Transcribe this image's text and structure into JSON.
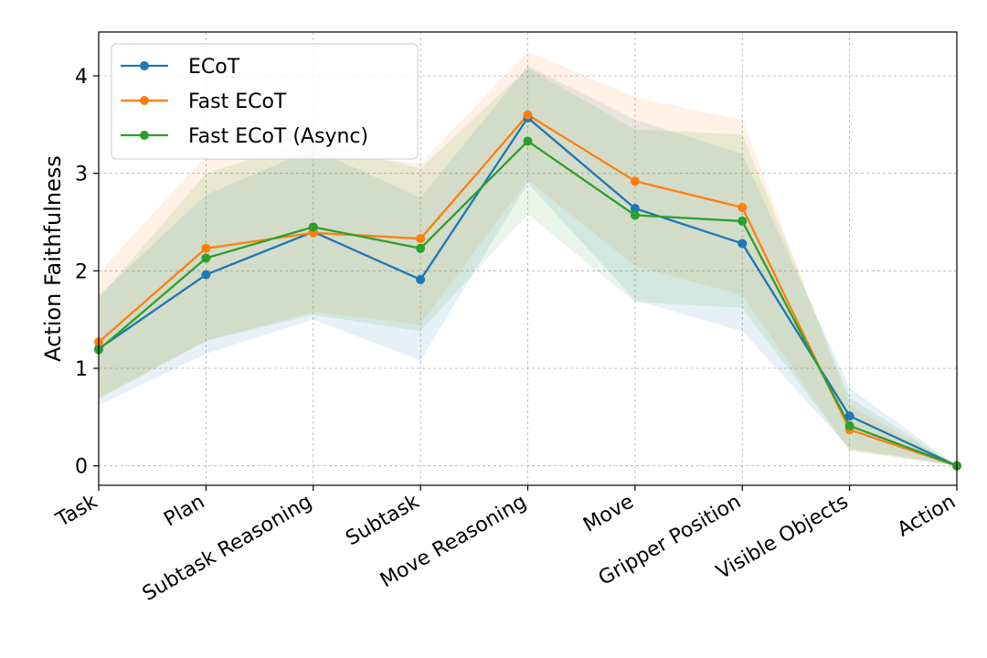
{
  "chart_data": {
    "type": "line",
    "title": "",
    "xlabel": "",
    "ylabel": "Action Faithfulness",
    "categories": [
      "Task",
      "Plan",
      "Subtask Reasoning",
      "Subtask",
      "Move Reasoning",
      "Move",
      "Gripper Position",
      "Visible Objects",
      "Action"
    ],
    "ylim": [
      -0.2,
      4.45
    ],
    "yticks": [
      0,
      1,
      2,
      3,
      4
    ],
    "grid": true,
    "legend_position": "top-left",
    "series": [
      {
        "name": "ECoT",
        "color": "#1f77b4",
        "values": [
          1.2,
          1.96,
          2.4,
          1.91,
          3.57,
          2.64,
          2.28,
          0.51,
          0.0
        ],
        "lower": [
          0.62,
          1.15,
          1.5,
          1.08,
          2.9,
          1.7,
          1.38,
          0.18,
          0.0
        ],
        "upper": [
          1.75,
          2.78,
          3.25,
          2.75,
          4.1,
          3.55,
          3.2,
          0.8,
          0.0
        ]
      },
      {
        "name": "Fast ECoT",
        "color": "#ff7f0e",
        "values": [
          1.27,
          2.23,
          2.39,
          2.33,
          3.6,
          2.92,
          2.65,
          0.37,
          0.0
        ],
        "lower": [
          0.68,
          1.28,
          1.58,
          1.45,
          2.93,
          2.05,
          1.75,
          0.15,
          0.0
        ],
        "upper": [
          1.98,
          3.18,
          3.2,
          3.1,
          4.25,
          3.78,
          3.55,
          0.62,
          0.0
        ]
      },
      {
        "name": "Fast ECoT (Async)",
        "color": "#2ca02c",
        "values": [
          1.19,
          2.13,
          2.45,
          2.23,
          3.33,
          2.57,
          2.51,
          0.41,
          0.0
        ],
        "lower": [
          0.7,
          1.28,
          1.55,
          1.38,
          2.58,
          1.68,
          1.62,
          0.16,
          0.0
        ],
        "upper": [
          1.72,
          3.0,
          3.35,
          3.05,
          4.08,
          3.45,
          3.4,
          0.7,
          0.0
        ]
      }
    ]
  }
}
